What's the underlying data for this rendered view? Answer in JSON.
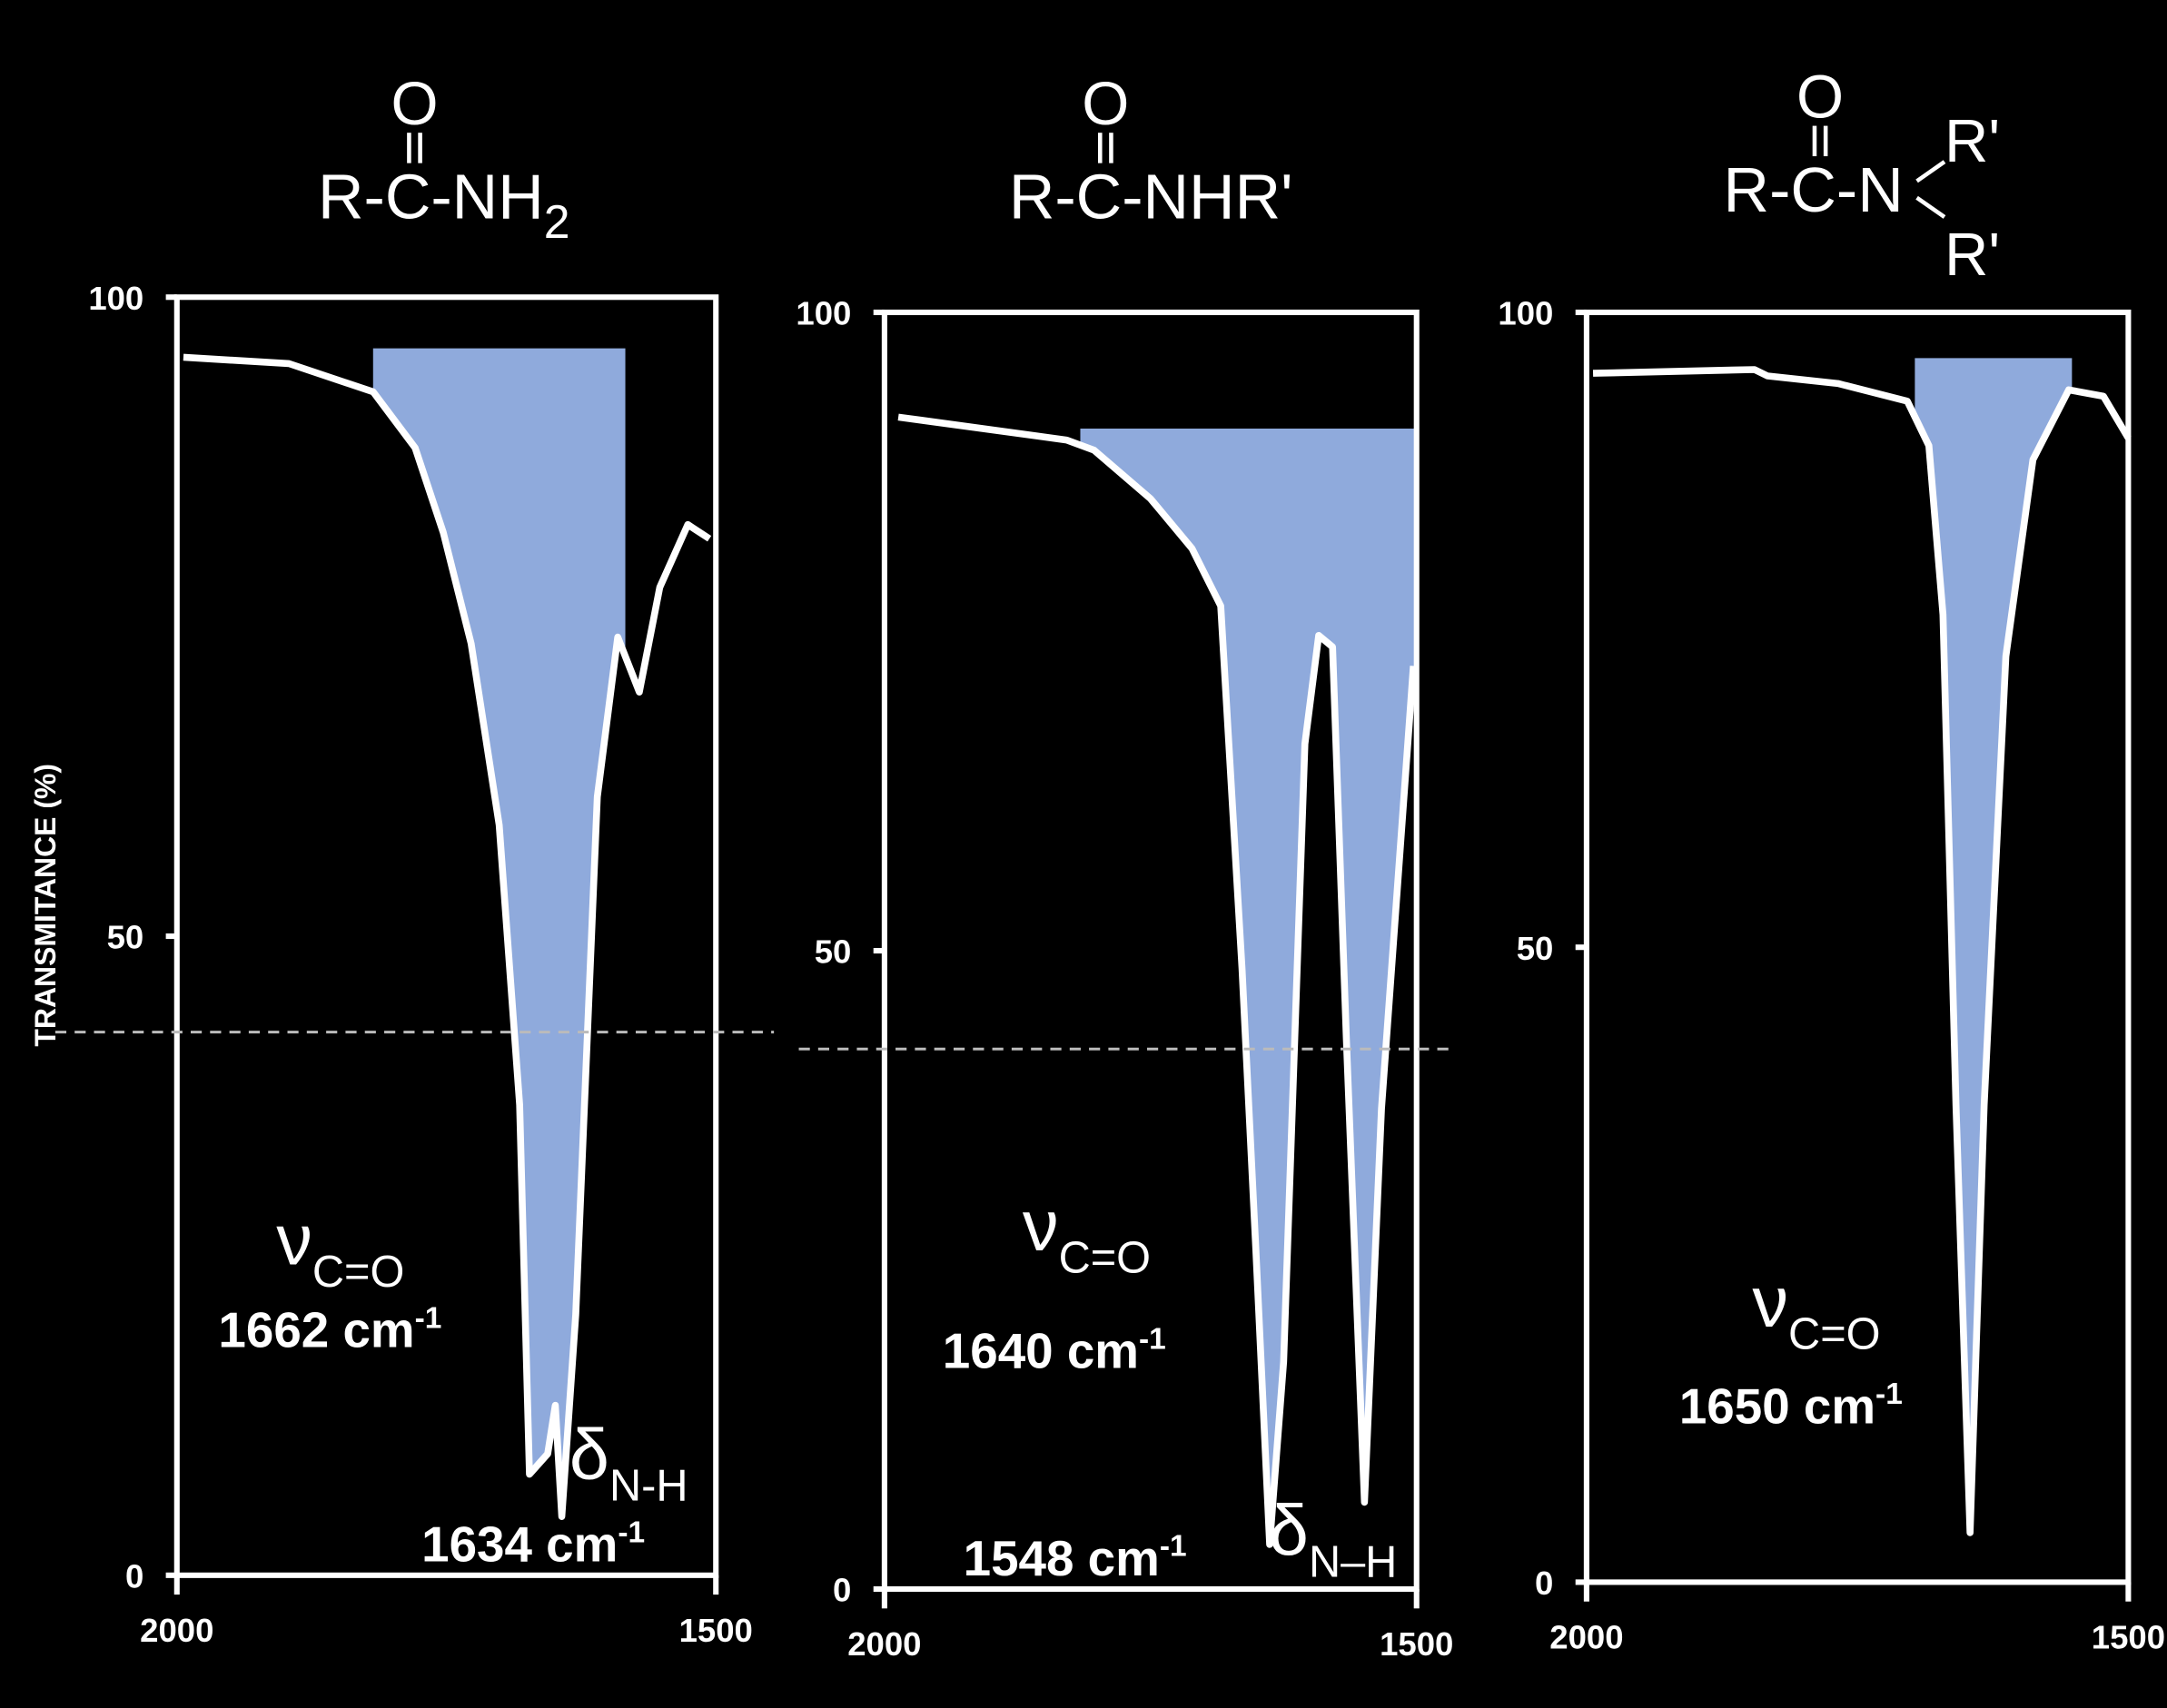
{
  "chart_data": [
    {
      "type": "line",
      "title": {
        "top": "O",
        "main": "R-C-NH",
        "sub": "2"
      },
      "ylabel": "TRANSMITANCE (%)",
      "x": [
        1994,
        1896,
        1818,
        1779,
        1753,
        1727,
        1701,
        1682,
        1673,
        1656,
        1649,
        1643,
        1630,
        1610,
        1591,
        1571,
        1552,
        1526,
        1506
      ],
      "values": [
        95.3,
        94.8,
        92.6,
        88.2,
        81.6,
        72.9,
        58.7,
        36.8,
        7.9,
        9.5,
        13.3,
        4.6,
        20.4,
        60.9,
        73.4,
        69.1,
        77.3,
        82.2,
        81.1
      ],
      "color": "#ffffff",
      "fill": {
        "x": [
          1818,
          1584
        ],
        "level": 96,
        "color": "#8faadc"
      },
      "reference_line": 42.5,
      "xlim": [
        2000,
        1500
      ],
      "ylim": [
        0,
        100
      ],
      "xticks": [
        2000,
        1500
      ],
      "yticks": [
        0,
        50,
        100
      ],
      "annotations": [
        {
          "text": "ν",
          "sub": "C=O"
        },
        {
          "text": "1662 cm",
          "sup": "-1"
        },
        {
          "text": "δ",
          "sub": "N-H"
        },
        {
          "text": "1634 cm",
          "sup": "-1"
        }
      ]
    },
    {
      "type": "line",
      "title": {
        "top": "O",
        "main": "R-C-NHR'"
      },
      "x": [
        1987,
        1829,
        1803,
        1750,
        1711,
        1684,
        1664,
        1651,
        1638,
        1625,
        1605,
        1592,
        1579,
        1566,
        1549,
        1533,
        1503
      ],
      "values": [
        91.8,
        90.0,
        89.2,
        85.4,
        81.5,
        77.0,
        48.6,
        26.6,
        3.5,
        17.8,
        66.2,
        74.7,
        73.8,
        43.1,
        6.8,
        37.6,
        72.3
      ],
      "color": "#ffffff",
      "fill": {
        "x": [
          1816,
          1500
        ],
        "level": 90.9,
        "color": "#8faadc"
      },
      "reference_line": 42.3,
      "xlim": [
        2000,
        1500
      ],
      "ylim": [
        0,
        100
      ],
      "xticks": [
        2000,
        1500
      ],
      "yticks": [
        0,
        50,
        100
      ],
      "annotations": [
        {
          "text": "ν",
          "sub": "C=O"
        },
        {
          "text": "1640 cm",
          "sup": "-1"
        },
        {
          "text": "1548 cm",
          "sup": "-1"
        },
        {
          "text": "δ",
          "sub": "N–H"
        }
      ]
    },
    {
      "type": "line",
      "title": {
        "top": "O",
        "main": "R-C-N",
        "branches": [
          "R'",
          "R'"
        ]
      },
      "x": [
        1994,
        1845,
        1833,
        1768,
        1704,
        1684,
        1671,
        1659,
        1646,
        1633,
        1613,
        1588,
        1555,
        1523,
        1500
      ],
      "values": [
        95.2,
        95.5,
        95.0,
        94.4,
        93.0,
        89.5,
        76.2,
        37.6,
        3.9,
        37.6,
        72.9,
        88.4,
        93.9,
        93.4,
        90.1
      ],
      "color": "#ffffff",
      "fill": {
        "x": [
          1697,
          1552
        ],
        "level": 96.4,
        "color": "#8faadc"
      },
      "xlim": [
        2000,
        1500
      ],
      "ylim": [
        0,
        100
      ],
      "xticks": [
        2000,
        1500
      ],
      "yticks": [
        0,
        50,
        100
      ],
      "annotations": [
        {
          "text": "ν",
          "sub": "C=O"
        },
        {
          "text": "1650 cm",
          "sup": "-1"
        }
      ]
    }
  ]
}
